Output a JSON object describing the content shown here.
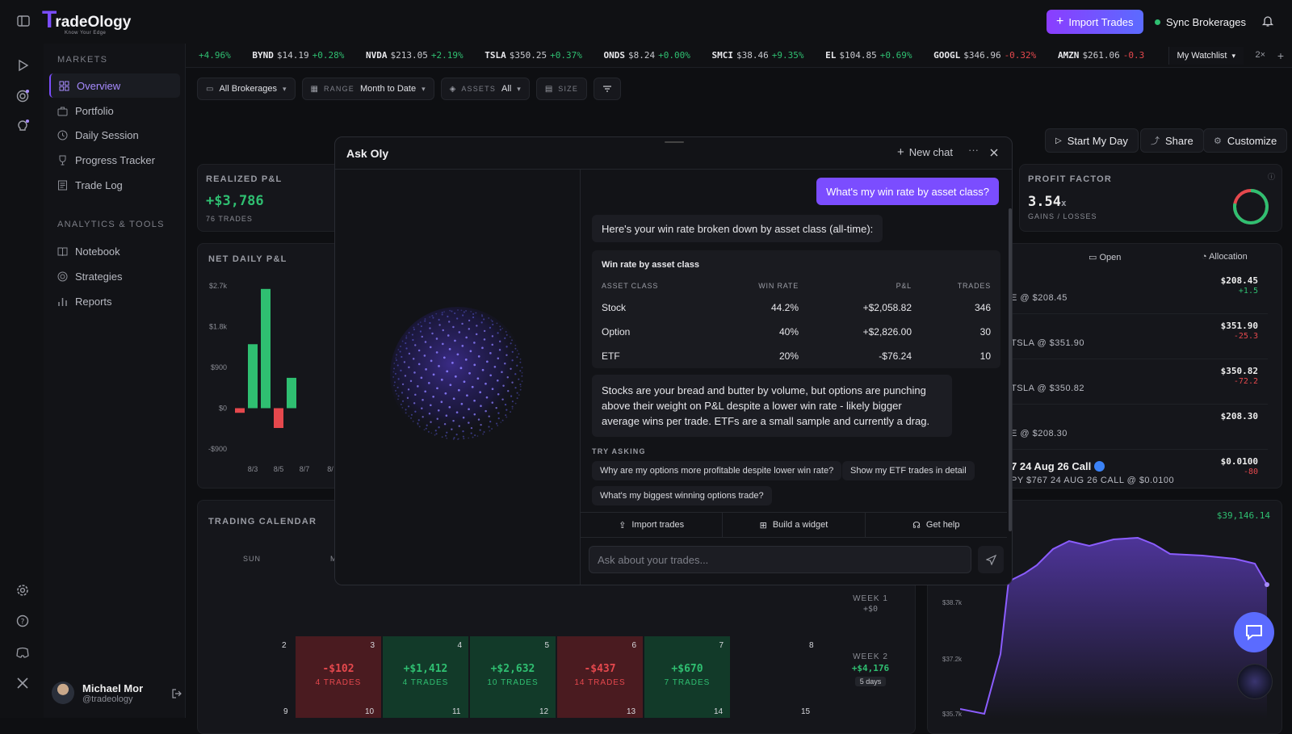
{
  "brand": {
    "logo_letter": "T",
    "logo_word": "radeOlogy",
    "tagline": "Know Your Edge"
  },
  "header": {
    "import_label": "Import Trades",
    "sync_label": "Sync Brokerages"
  },
  "nav": {
    "markets_heading": "MARKETS",
    "markets": [
      {
        "label": "Overview",
        "icon": "grid-icon"
      },
      {
        "label": "Portfolio",
        "icon": "briefcase-icon"
      },
      {
        "label": "Daily Session",
        "icon": "clock-icon"
      },
      {
        "label": "Progress Tracker",
        "icon": "trophy-icon"
      },
      {
        "label": "Trade Log",
        "icon": "log-icon"
      }
    ],
    "tools_heading": "ANALYTICS & TOOLS",
    "tools": [
      {
        "label": "Notebook",
        "icon": "book-icon"
      },
      {
        "label": "Strategies",
        "icon": "target-icon"
      },
      {
        "label": "Reports",
        "icon": "bar-chart-icon"
      }
    ]
  },
  "user": {
    "name": "Michael Mor",
    "handle": "@tradeology"
  },
  "ticker": [
    {
      "sym": "",
      "price": "",
      "chg": "+4.96%",
      "dir": "pos"
    },
    {
      "sym": "BYND",
      "price": "$14.19",
      "chg": "+0.28%",
      "dir": "pos"
    },
    {
      "sym": "NVDA",
      "price": "$213.05",
      "chg": "+2.19%",
      "dir": "pos"
    },
    {
      "sym": "TSLA",
      "price": "$350.25",
      "chg": "+0.37%",
      "dir": "pos"
    },
    {
      "sym": "ONDS",
      "price": "$8.24",
      "chg": "+0.00%",
      "dir": "pos"
    },
    {
      "sym": "SMCI",
      "price": "$38.46",
      "chg": "+9.35%",
      "dir": "pos"
    },
    {
      "sym": "EL",
      "price": "$104.85",
      "chg": "+0.69%",
      "dir": "pos"
    },
    {
      "sym": "GOOGL",
      "price": "$346.96",
      "chg": "-0.32%",
      "dir": "neg"
    },
    {
      "sym": "AMZN",
      "price": "$261.06",
      "chg": "-0.3",
      "dir": "neg"
    }
  ],
  "watchlist": {
    "label": "My Watchlist",
    "mult": "2×"
  },
  "filters": {
    "brokerages": "All Brokerages",
    "range_label": "RANGE",
    "range_value": "Month to Date",
    "assets_label": "ASSETS",
    "assets_value": "All",
    "size_label": "SIZE"
  },
  "actions": {
    "start": "Start My Day",
    "share": "Share",
    "customize": "Customize"
  },
  "realized": {
    "title": "REALIZED P&L",
    "value": "+$3,786",
    "sub": "76 TRADES"
  },
  "profit_factor": {
    "title": "PROFIT FACTOR",
    "value": "3.54",
    "unit": "x",
    "sub": "GAINS / LOSSES",
    "ring_fraction": 0.78
  },
  "net_daily": {
    "title": "NET DAILY P&L"
  },
  "chart_data": {
    "type": "bar",
    "y_ticks": [
      "$2.7k",
      "$1.8k",
      "$900",
      "$0",
      "-$900"
    ],
    "x_ticks": [
      "8/3",
      "8/5",
      "8/7",
      "8/"
    ],
    "values": [
      -102,
      1412,
      2632,
      -437,
      670
    ],
    "ylim": [
      -900,
      2700
    ]
  },
  "calendar": {
    "title": "TRADING CALENDAR",
    "day_head": "SUN",
    "day_head2": "M",
    "week1_label": "WEEK 1",
    "week1_val": "+$0",
    "week2_label": "WEEK 2",
    "week2_val": "+$4,176",
    "week2_badge": "5 days",
    "row1_days": [
      "2",
      "8"
    ],
    "cells": [
      {
        "day": "3",
        "amount": "-$102",
        "trades": "4 TRADES",
        "dir": "neg"
      },
      {
        "day": "4",
        "amount": "+$1,412",
        "trades": "4 TRADES",
        "dir": "pos"
      },
      {
        "day": "5",
        "amount": "+$2,632",
        "trades": "10 TRADES",
        "dir": "pos"
      },
      {
        "day": "6",
        "amount": "-$437",
        "trades": "14 TRADES",
        "dir": "neg"
      },
      {
        "day": "7",
        "amount": "+$670",
        "trades": "7 TRADES",
        "dir": "pos"
      }
    ],
    "row2_days": [
      "9",
      "10",
      "11",
      "12",
      "13",
      "14",
      "15"
    ]
  },
  "positions": {
    "tab_open": "Open",
    "tab_alloc": "Allocation",
    "rows": [
      {
        "sub": "E @ $208.45",
        "price": "$208.45",
        "chg": "+1.5",
        "dir": "pos"
      },
      {
        "sub": "TSLA @ $351.90",
        "price": "$351.90",
        "chg": "-25.3",
        "dir": "neg"
      },
      {
        "sub": "TSLA @ $350.82",
        "price": "$350.82",
        "chg": "-72.2",
        "dir": "neg"
      },
      {
        "sub": "E @ $208.30",
        "price": "$208.30",
        "chg": "",
        "dir": "pos"
      },
      {
        "title": "7 24 Aug 26 Call",
        "sub": "PY $767 24 AUG 26 CALL @ $0.0100",
        "price": "$0.0100",
        "chg": "-80",
        "dir": "neg"
      }
    ]
  },
  "equity": {
    "value": "$39,146.14",
    "y_ticks": [
      "$38.7k",
      "$37.2k",
      "$35.7k"
    ]
  },
  "modal": {
    "title": "Ask Oly",
    "new_chat": "New chat",
    "more": "···",
    "user_message": "What's my win rate by asset class?",
    "reply1": "Here's your win rate broken down by asset class (all-time):",
    "table": {
      "title": "Win rate by asset class",
      "headers": [
        "ASSET CLASS",
        "WIN RATE",
        "P&L",
        "TRADES"
      ],
      "rows": [
        {
          "cls": "Stock",
          "rate": "44.2%",
          "pnl": "+$2,058.82",
          "trades": "346",
          "dir": "pos"
        },
        {
          "cls": "Option",
          "rate": "40%",
          "pnl": "+$2,826.00",
          "trades": "30",
          "dir": "pos"
        },
        {
          "cls": "ETF",
          "rate": "20%",
          "pnl": "-$76.24",
          "trades": "10",
          "dir": "neg"
        }
      ]
    },
    "reply2": "Stocks are your bread and butter by volume, but options are punching above their weight on P&L despite a lower win rate - likely bigger average wins per trade. ETFs are a small sample and currently a drag.",
    "try_label": "TRY ASKING",
    "chips": [
      "Why are my options more profitable despite lower win rate?",
      "Show my ETF trades in detail",
      "What's my biggest winning options trade?"
    ],
    "actions": [
      "Import trades",
      "Build a widget",
      "Get help"
    ],
    "input_placeholder": "Ask about your trades..."
  },
  "colors": {
    "accent": "#7b4dff",
    "positive": "#2fbf71",
    "negative": "#e5484d"
  }
}
